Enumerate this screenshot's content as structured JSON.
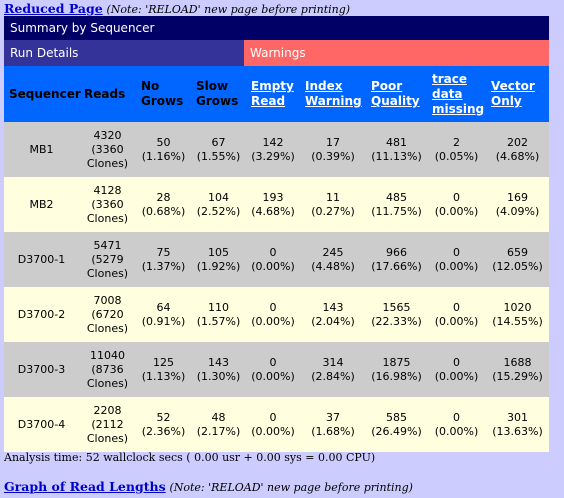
{
  "top_link": {
    "label": "Reduced Page",
    "note": "(Note: 'RELOAD' new page before printing)"
  },
  "summary_title": "Summary by Sequencer",
  "run_details_label": "Run Details",
  "warnings_label": "Warnings",
  "headers": {
    "sequencer": "Sequencer",
    "reads": "Reads",
    "no_grows": [
      "No",
      "Grows"
    ],
    "slow_grows": [
      "Slow",
      "Grows"
    ],
    "empty_read": [
      "Empty",
      "Read"
    ],
    "index_warning": [
      "Index",
      "Warning"
    ],
    "poor_quality": [
      "Poor",
      "Quality"
    ],
    "trace_missing": [
      "trace",
      "data",
      "missing"
    ],
    "vector_only": [
      "Vector",
      "Only"
    ]
  },
  "rows": [
    {
      "sequencer": "MB1",
      "reads": [
        "4320",
        "(3360",
        "Clones)"
      ],
      "no_grows": [
        "50",
        "(1.16%)"
      ],
      "slow_grows": [
        "67",
        "(1.55%)"
      ],
      "empty_read": [
        "142",
        "(3.29%)"
      ],
      "index_warning": [
        "17",
        "(0.39%)"
      ],
      "poor_quality": [
        "481",
        "(11.13%)"
      ],
      "trace_missing": [
        "2",
        "(0.05%)"
      ],
      "vector_only": [
        "202",
        "(4.68%)"
      ]
    },
    {
      "sequencer": "MB2",
      "reads": [
        "4128",
        "(3360",
        "Clones)"
      ],
      "no_grows": [
        "28",
        "(0.68%)"
      ],
      "slow_grows": [
        "104",
        "(2.52%)"
      ],
      "empty_read": [
        "193",
        "(4.68%)"
      ],
      "index_warning": [
        "11",
        "(0.27%)"
      ],
      "poor_quality": [
        "485",
        "(11.75%)"
      ],
      "trace_missing": [
        "0",
        "(0.00%)"
      ],
      "vector_only": [
        "169",
        "(4.09%)"
      ]
    },
    {
      "sequencer": "D3700-1",
      "reads": [
        "5471",
        "(5279",
        "Clones)"
      ],
      "no_grows": [
        "75",
        "(1.37%)"
      ],
      "slow_grows": [
        "105",
        "(1.92%)"
      ],
      "empty_read": [
        "0",
        "(0.00%)"
      ],
      "index_warning": [
        "245",
        "(4.48%)"
      ],
      "poor_quality": [
        "966",
        "(17.66%)"
      ],
      "trace_missing": [
        "0",
        "(0.00%)"
      ],
      "vector_only": [
        "659",
        "(12.05%)"
      ]
    },
    {
      "sequencer": "D3700-2",
      "reads": [
        "7008",
        "(6720",
        "Clones)"
      ],
      "no_grows": [
        "64",
        "(0.91%)"
      ],
      "slow_grows": [
        "110",
        "(1.57%)"
      ],
      "empty_read": [
        "0",
        "(0.00%)"
      ],
      "index_warning": [
        "143",
        "(2.04%)"
      ],
      "poor_quality": [
        "1565",
        "(22.33%)"
      ],
      "trace_missing": [
        "0",
        "(0.00%)"
      ],
      "vector_only": [
        "1020",
        "(14.55%)"
      ]
    },
    {
      "sequencer": "D3700-3",
      "reads": [
        "11040",
        "(8736",
        "Clones)"
      ],
      "no_grows": [
        "125",
        "(1.13%)"
      ],
      "slow_grows": [
        "143",
        "(1.30%)"
      ],
      "empty_read": [
        "0",
        "(0.00%)"
      ],
      "index_warning": [
        "314",
        "(2.84%)"
      ],
      "poor_quality": [
        "1875",
        "(16.98%)"
      ],
      "trace_missing": [
        "0",
        "(0.00%)"
      ],
      "vector_only": [
        "1688",
        "(15.29%)"
      ]
    },
    {
      "sequencer": "D3700-4",
      "reads": [
        "2208",
        "(2112",
        "Clones)"
      ],
      "no_grows": [
        "52",
        "(2.36%)"
      ],
      "slow_grows": [
        "48",
        "(2.17%)"
      ],
      "empty_read": [
        "0",
        "(0.00%)"
      ],
      "index_warning": [
        "37",
        "(1.68%)"
      ],
      "poor_quality": [
        "585",
        "(26.49%)"
      ],
      "trace_missing": [
        "0",
        "(0.00%)"
      ],
      "vector_only": [
        "301",
        "(13.63%)"
      ]
    }
  ],
  "analysis_time": "Analysis time: 52 wallclock secs ( 0.00 usr + 0.00 sys = 0.00 CPU)",
  "bottom_link": {
    "label": "Graph of Read Lengths",
    "note": "(Note: 'RELOAD' new page before printing)"
  },
  "colors": {
    "page_bg": "#ccccff",
    "summary_bg": "#000066",
    "run_bg": "#33339a",
    "warn_bg": "#ff6666",
    "header_bg": "#0066ff",
    "row_odd": "#cccccc",
    "row_even": "#ffffe0",
    "link": "#0000cc"
  }
}
